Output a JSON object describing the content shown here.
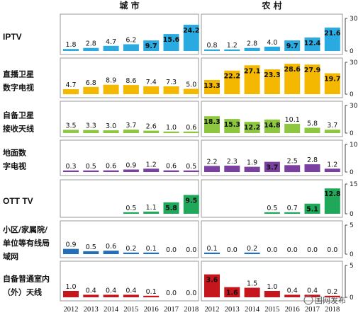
{
  "chart_data": {
    "type": "bar",
    "panel_titles": [
      "城 市",
      "农 村"
    ],
    "categories": [
      "2012",
      "2013",
      "2014",
      "2015",
      "2016",
      "2017",
      "2018"
    ],
    "rows": [
      {
        "id": "iptv",
        "label_lines": [
          "IPTV"
        ],
        "color": "#29ABE2",
        "ymax": 30,
        "yticks": [
          0,
          30
        ],
        "urban": [
          1.8,
          2.8,
          4.7,
          6.2,
          9.7,
          15.6,
          24.2
        ],
        "rural": [
          0.8,
          1.2,
          2.8,
          4.0,
          9.7,
          12.4,
          21.6
        ]
      },
      {
        "id": "satellite-digital-tv",
        "label_lines": [
          "直播卫星",
          "数字电视"
        ],
        "color": "#F5B800",
        "ymax": 30,
        "yticks": [
          0,
          30
        ],
        "urban": [
          4.7,
          6.8,
          8.9,
          8.6,
          7.4,
          7.3,
          5.0
        ],
        "rural": [
          13.3,
          22.2,
          27.1,
          23.3,
          28.6,
          27.9,
          19.7
        ]
      },
      {
        "id": "self-satellite",
        "label_lines": [
          "自备卫星",
          "接收天线"
        ],
        "color": "#8DC63F",
        "ymax": 30,
        "yticks": [
          0,
          30
        ],
        "urban": [
          3.5,
          3.3,
          3.0,
          3.7,
          2.6,
          1.0,
          0.6
        ],
        "rural": [
          18.3,
          15.3,
          12.2,
          14.8,
          10.1,
          5.8,
          3.7
        ]
      },
      {
        "id": "terrestrial-digital-tv",
        "label_lines": [
          "地面数",
          "字电视"
        ],
        "color": "#7A3FA0",
        "ymax": 10,
        "yticks": [
          0,
          10
        ],
        "urban": [
          0.3,
          0.5,
          0.6,
          0.9,
          1.2,
          0.6,
          0.5
        ],
        "rural": [
          2.2,
          2.3,
          1.9,
          3.7,
          2.5,
          2.8,
          1.2
        ]
      },
      {
        "id": "ott-tv",
        "label_lines": [
          "OTT TV"
        ],
        "color": "#1FA85A",
        "ymax": 15,
        "yticks": [
          0,
          15
        ],
        "urban": [
          null,
          null,
          null,
          0.5,
          1.1,
          5.8,
          9.5
        ],
        "rural": [
          null,
          null,
          null,
          0.5,
          0.7,
          5.1,
          12.8
        ]
      },
      {
        "id": "community-cable",
        "label_lines": [
          "小区/家属院/",
          "单位等有线局",
          "域网"
        ],
        "color": "#2470B8",
        "ymax": 5,
        "yticks": [
          0,
          5
        ],
        "urban": [
          0.9,
          0.5,
          0.6,
          0.2,
          0.1,
          0.0,
          0.0
        ],
        "rural": [
          0.1,
          0.0,
          0.2,
          0.0,
          0.0,
          0.0,
          0.0
        ]
      },
      {
        "id": "indoor-antenna",
        "label_lines": [
          "自备普通室内",
          "（外）天线"
        ],
        "color": "#C4161C",
        "ymax": 5,
        "yticks": [
          0,
          5
        ],
        "urban": [
          1.0,
          0.4,
          0.4,
          0.4,
          0.1,
          0.0,
          0.0
        ],
        "rural": [
          3.6,
          1.6,
          1.5,
          1.0,
          0.4,
          0.4,
          0.2
        ]
      }
    ],
    "grid": false,
    "legend": "none"
  },
  "watermark": "国网发布"
}
